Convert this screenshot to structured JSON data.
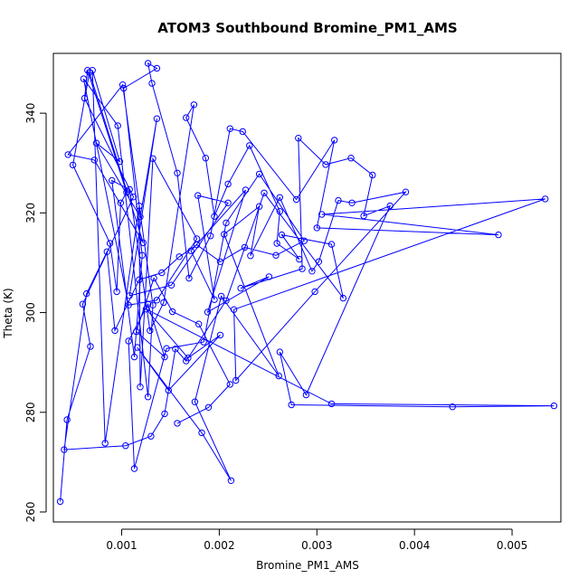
{
  "chart_data": {
    "type": "scatter",
    "title": "ATOM3 Southbound Bromine_PM1_AMS",
    "xlabel": "Bromine_PM1_AMS",
    "ylabel": "Theta (K)",
    "xlim": [
      0.0003,
      0.0055
    ],
    "ylim": [
      258,
      352
    ],
    "xticks": [
      0.001,
      0.002,
      0.003,
      0.004,
      0.005
    ],
    "xtick_labels": [
      "0.001",
      "0.002",
      "0.003",
      "0.004",
      "0.005"
    ],
    "yticks": [
      260,
      280,
      300,
      320,
      340
    ],
    "ytick_labels": [
      "260",
      "280",
      "300",
      "320",
      "340"
    ],
    "grid": false,
    "legend": "none",
    "connected": true,
    "series": [
      {
        "color": "#0000FF",
        "points": [
          [
            0.00037,
            262.1
          ],
          [
            0.00044,
            278.5
          ],
          [
            0.00068,
            293.2
          ],
          [
            0.0006,
            301.7
          ],
          [
            0.00112,
            323.2
          ],
          [
            0.00062,
            343.0
          ],
          [
            0.00065,
            348.6
          ],
          [
            0.00105,
            324.1
          ],
          [
            0.00099,
            322.0
          ],
          [
            0.00095,
            304.2
          ],
          [
            0.00088,
            313.9
          ],
          [
            0.0005,
            329.6
          ],
          [
            0.00067,
            348.2
          ],
          [
            0.00122,
            314.0
          ],
          [
            0.00072,
            330.6
          ],
          [
            0.00045,
            331.7
          ],
          [
            0.00101,
            345.7
          ],
          [
            0.00132,
            301.5
          ],
          [
            0.00127,
            283.1
          ],
          [
            0.00096,
            337.5
          ],
          [
            0.00061,
            346.9
          ],
          [
            0.00107,
            301.5
          ],
          [
            0.00136,
            302.5
          ],
          [
            0.00177,
            314.8
          ],
          [
            0.00132,
            330.9
          ],
          [
            0.00119,
            285.1
          ],
          [
            0.00118,
            321.4
          ],
          [
            0.00083,
            273.8
          ],
          [
            0.0007,
            348.6
          ],
          [
            0.00098,
            330.3
          ],
          [
            0.00074,
            334.0
          ],
          [
            0.00119,
            319.2
          ],
          [
            0.00136,
            338.9
          ],
          [
            0.00108,
            303.4
          ],
          [
            0.00151,
            305.5
          ],
          [
            0.00209,
            322.0
          ],
          [
            0.00178,
            323.5
          ],
          [
            0.00195,
            302.6
          ],
          [
            0.00171,
            312.4
          ],
          [
            0.00227,
            324.6
          ],
          [
            0.00188,
            300.1
          ],
          [
            0.00251,
            307.2
          ],
          [
            0.00222,
            304.9
          ],
          [
            0.00285,
            308.8
          ],
          [
            0.00281,
            335.0
          ],
          [
            0.00309,
            329.7
          ],
          [
            0.00335,
            331.0
          ],
          [
            0.00357,
            327.6
          ],
          [
            0.00348,
            319.4
          ],
          [
            0.00375,
            321.4
          ],
          [
            0.00289,
            283.5
          ],
          [
            0.00262,
            292.1
          ],
          [
            0.00274,
            281.5
          ],
          [
            0.00439,
            281.1
          ],
          [
            0.00543,
            281.3
          ],
          [
            0.00315,
            281.7
          ],
          [
            0.00125,
            300.7
          ],
          [
            0.00168,
            290.9
          ],
          [
            0.00201,
            295.5
          ],
          [
            0.00148,
            284.4
          ],
          [
            0.00116,
            293.0
          ],
          [
            0.00182,
            275.9
          ],
          [
            0.00212,
            266.3
          ],
          [
            0.00175,
            282.1
          ],
          [
            0.00202,
            303.3
          ],
          [
            0.00261,
            287.3
          ],
          [
            0.00205,
            315.7
          ],
          [
            0.00241,
            321.3
          ],
          [
            0.00232,
            311.4
          ],
          [
            0.00262,
            323.1
          ],
          [
            0.00295,
            308.3
          ],
          [
            0.00302,
            310.2
          ],
          [
            0.00322,
            322.5
          ],
          [
            0.00336,
            322.0
          ],
          [
            0.00391,
            324.2
          ],
          [
            0.00298,
            304.2
          ],
          [
            0.00217,
            286.4
          ],
          [
            0.00215,
            300.6
          ],
          [
            0.00534,
            322.8
          ],
          [
            0.00305,
            319.7
          ],
          [
            0.00486,
            315.6
          ],
          [
            0.003,
            317.0
          ],
          [
            0.00318,
            334.6
          ],
          [
            0.00279,
            322.7
          ],
          [
            0.00224,
            336.3
          ],
          [
            0.00211,
            336.9
          ],
          [
            0.00191,
            315.4
          ],
          [
            0.00169,
            306.9
          ],
          [
            0.00157,
            328.0
          ],
          [
            0.00131,
            346.0
          ],
          [
            0.00127,
            350.0
          ],
          [
            0.00136,
            349.0
          ],
          [
            0.00102,
            345.0
          ],
          [
            0.00121,
            311.5
          ],
          [
            0.00113,
            291.1
          ],
          [
            0.0009,
            326.5
          ],
          [
            0.00108,
            324.7
          ],
          [
            0.00129,
            296.4
          ],
          [
            0.00143,
            302.0
          ],
          [
            0.00174,
            341.7
          ],
          [
            0.00166,
            339.1
          ],
          [
            0.00186,
            331.0
          ],
          [
            0.00195,
            319.3
          ],
          [
            0.00209,
            325.8
          ],
          [
            0.00231,
            333.5
          ],
          [
            0.00262,
            320.3
          ],
          [
            0.00259,
            313.9
          ],
          [
            0.00282,
            310.7
          ],
          [
            0.00264,
            315.6
          ],
          [
            0.00315,
            313.7
          ],
          [
            0.00327,
            302.9
          ],
          [
            0.00246,
            324.0
          ],
          [
            0.00207,
            302.4
          ],
          [
            0.00166,
            290.3
          ],
          [
            0.00155,
            292.7
          ],
          [
            0.00144,
            279.7
          ],
          [
            0.0013,
            275.2
          ],
          [
            0.00104,
            273.3
          ],
          [
            0.00041,
            272.5
          ],
          [
            0.00064,
            303.8
          ],
          [
            0.00085,
            312.2
          ],
          [
            0.00093,
            296.4
          ],
          [
            0.00118,
            306.6
          ],
          [
            0.00141,
            308.0
          ],
          [
            0.00159,
            311.2
          ],
          [
            0.00177,
            313.6
          ],
          [
            0.00201,
            310.2
          ],
          [
            0.00226,
            313.1
          ],
          [
            0.00258,
            311.5
          ],
          [
            0.00287,
            314.4
          ],
          [
            0.00241,
            327.8
          ],
          [
            0.00207,
            318.0
          ],
          [
            0.00184,
            294.1
          ],
          [
            0.00146,
            292.8
          ],
          [
            0.00113,
            268.7
          ],
          [
            0.00107,
            294.3
          ],
          [
            0.00127,
            301.7
          ],
          [
            0.00144,
            291.1
          ],
          [
            0.00115,
            296.2
          ],
          [
            0.00133,
            306.9
          ],
          [
            0.00152,
            300.2
          ],
          [
            0.00179,
            297.7
          ],
          [
            0.00211,
            285.6
          ],
          [
            0.00189,
            281.0
          ],
          [
            0.00157,
            277.8
          ]
        ]
      }
    ]
  }
}
